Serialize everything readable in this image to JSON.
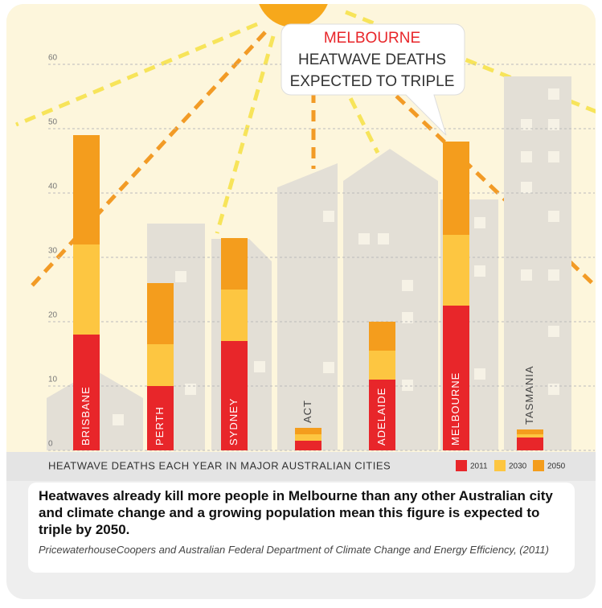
{
  "chart_data": {
    "type": "stacked-bar",
    "x_label": "HEATWAVE DEATHS EACH YEAR IN MAJOR AUSTRALIAN CITIES",
    "annotation": [
      "MELBOURNE",
      "HEATWAVE DEATHS",
      "EXPECTED TO TRIPLE"
    ],
    "categories": [
      "BRISBANE",
      "PERTH",
      "SYDNEY",
      "ACT",
      "ADELAIDE",
      "MELBOURNE",
      "TASMANIA"
    ],
    "series": [
      {
        "name": "2011",
        "color": "#e8262a",
        "values": [
          18,
          10,
          17,
          1.5,
          11,
          22.5,
          2
        ]
      },
      {
        "name": "2030",
        "color": "#fdc641",
        "values": [
          14,
          6.5,
          8,
          1,
          4.5,
          11,
          0.5
        ]
      },
      {
        "name": "2050",
        "color": "#f49d1d",
        "values": [
          17,
          9.5,
          8,
          1,
          4.5,
          14.5,
          0.75
        ]
      }
    ],
    "ylim": [
      0,
      60
    ],
    "yticks": [
      0,
      10,
      20,
      30,
      40,
      50,
      60
    ],
    "grid": true,
    "caption": "Heatwaves already kill more people in Melbourne than any other Australian city and climate change and a growing population mean this figure is expected to triple by 2050.",
    "source": "PricewaterhouseCoopers and Australian Federal Department of Climate Change and Energy Efficiency, (2011)"
  }
}
